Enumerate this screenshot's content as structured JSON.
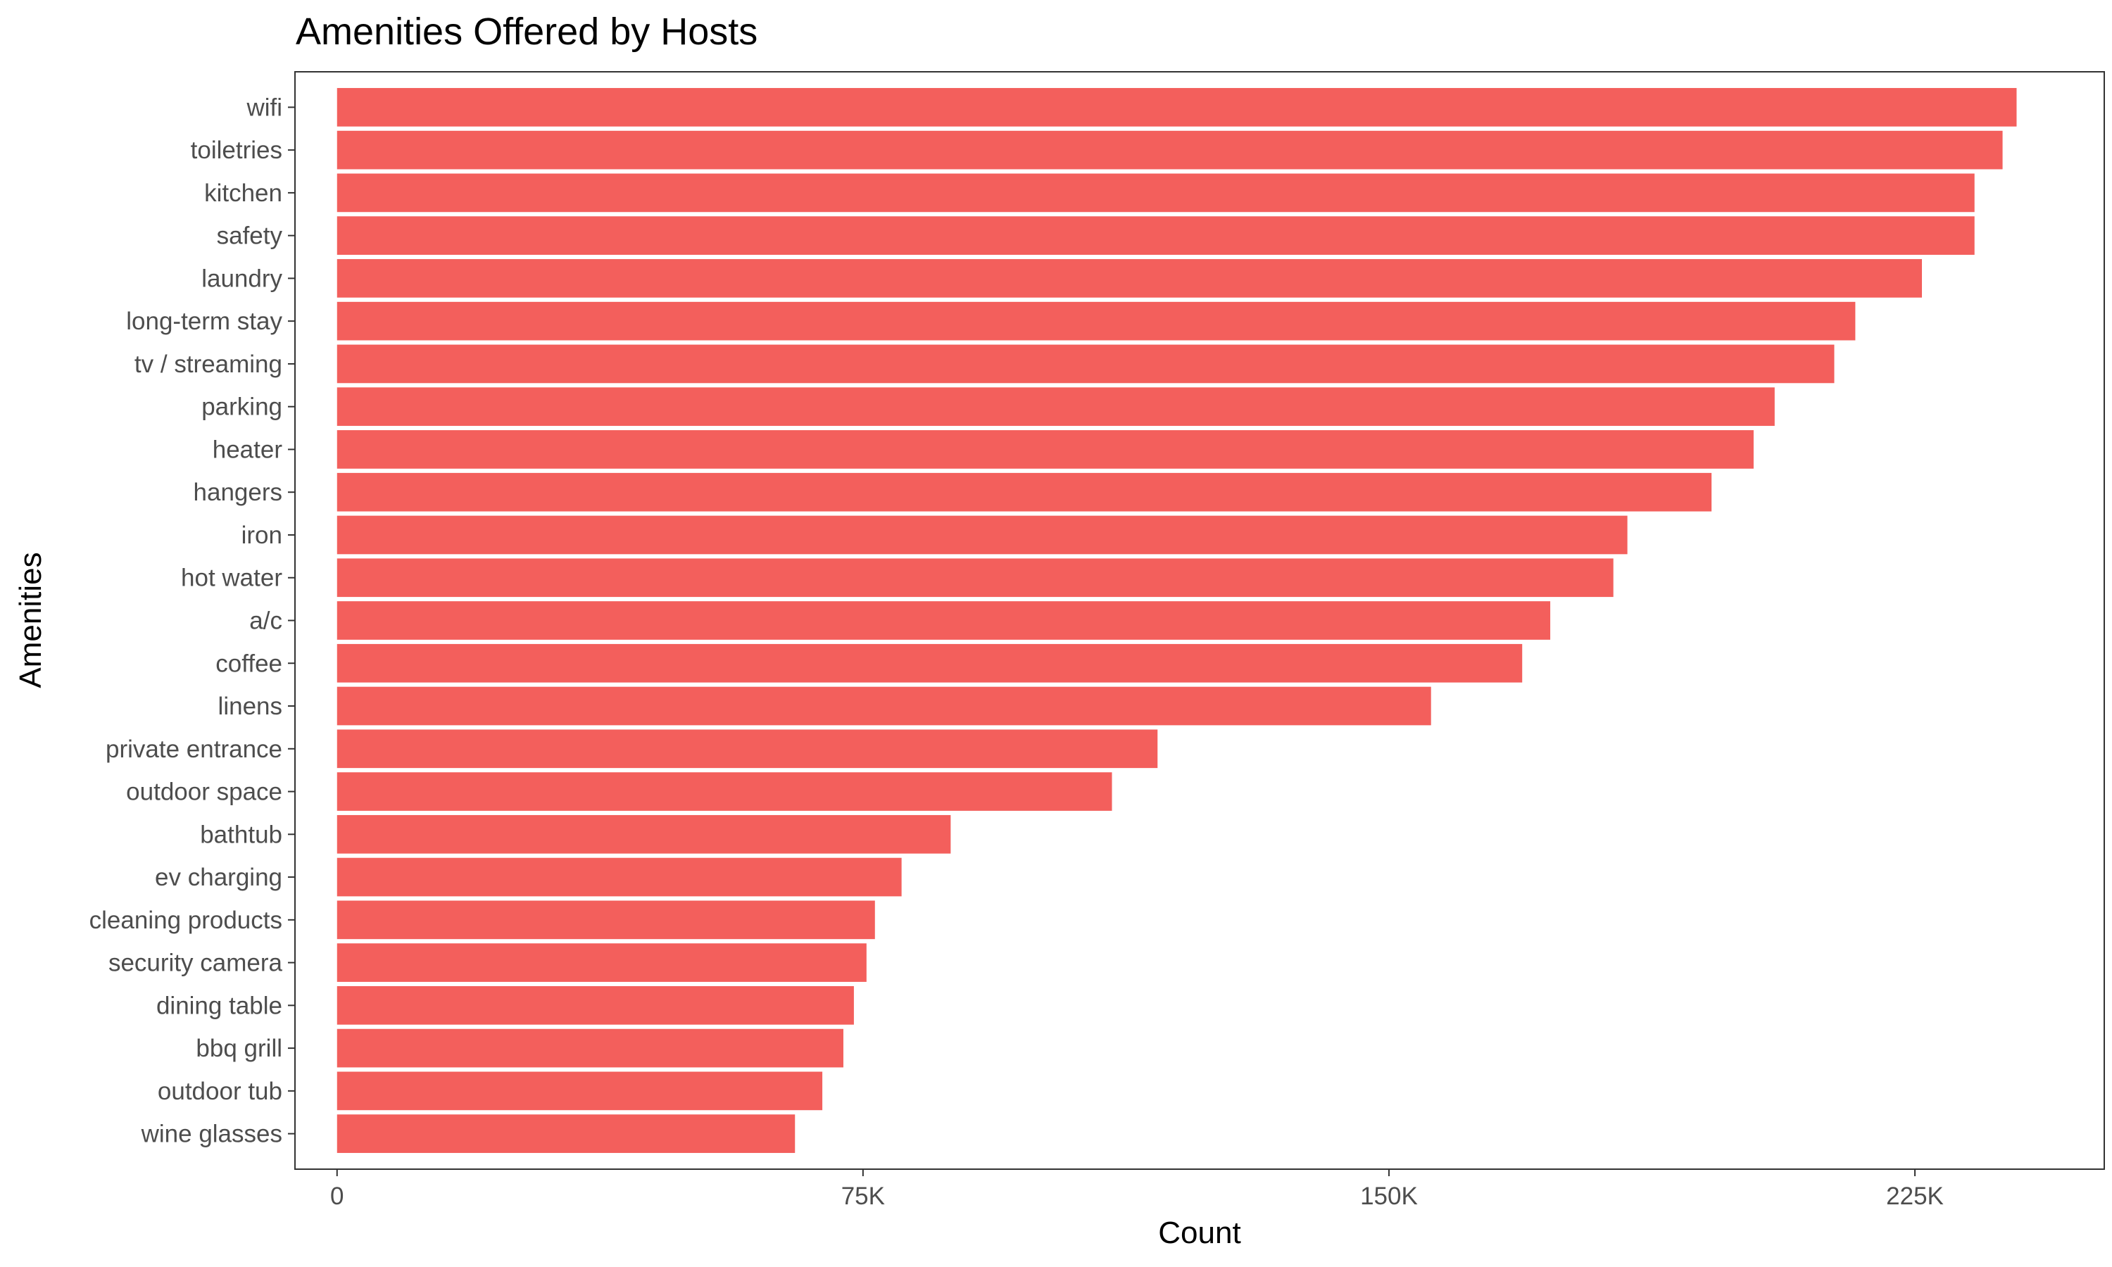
{
  "chart_data": {
    "type": "bar",
    "orientation": "horizontal",
    "title": "Amenities Offered by Hosts",
    "xlabel": "Count",
    "ylabel": "Amenities",
    "xlim": [
      -6000,
      252000
    ],
    "x_ticks": [
      {
        "value": 0,
        "label": "0"
      },
      {
        "value": 75000,
        "label": "75K"
      },
      {
        "value": 150000,
        "label": "150K"
      },
      {
        "value": 225000,
        "label": "225K"
      }
    ],
    "grid": false,
    "bar_color": "#F35F5C",
    "categories": [
      "wifi",
      "toiletries",
      "kitchen",
      "safety",
      "laundry",
      "long-term stay",
      "tv / streaming",
      "parking",
      "heater",
      "hangers",
      "iron",
      "hot water",
      "a/c",
      "coffee",
      "linens",
      "private entrance",
      "outdoor space",
      "bathtub",
      "ev charging",
      "cleaning products",
      "security camera",
      "dining table",
      "bbq grill",
      "outdoor tub",
      "wine glasses"
    ],
    "values": [
      239500,
      237500,
      233500,
      233500,
      226000,
      216500,
      213500,
      205000,
      202000,
      196000,
      184000,
      182000,
      173000,
      169000,
      156000,
      117000,
      110500,
      87500,
      80500,
      76700,
      75500,
      73700,
      72200,
      69200,
      65300
    ]
  }
}
